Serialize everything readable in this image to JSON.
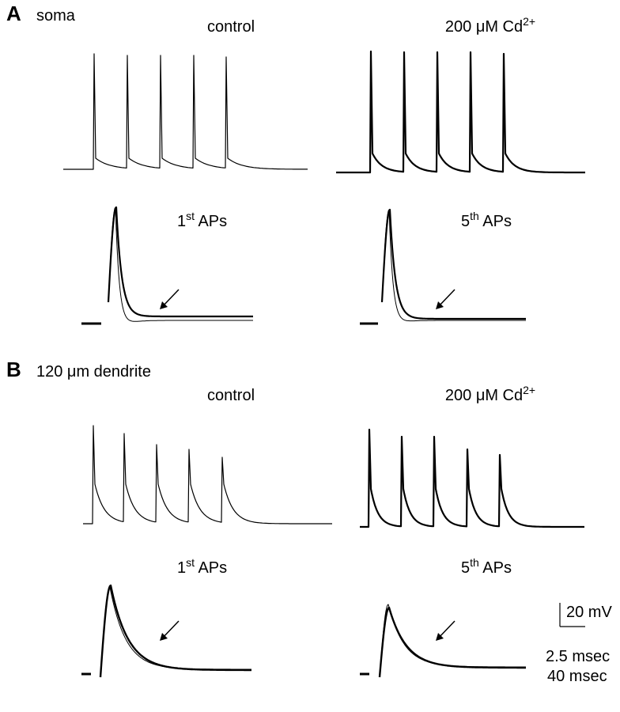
{
  "panels": [
    {
      "label": "A",
      "title": "soma",
      "conditions": [
        {
          "text": "control"
        },
        {
          "text": "200 μM Cd",
          "sup": "2+"
        }
      ],
      "overlays": [
        {
          "text": "1",
          "sup": "st",
          "rest": " APs"
        },
        {
          "text": "5",
          "sup": "th",
          "rest": " APs"
        }
      ]
    },
    {
      "label": "B",
      "title": "120 μm dendrite",
      "conditions": [
        {
          "text": "control"
        },
        {
          "text": "200 μM Cd",
          "sup": "2+"
        }
      ],
      "overlays": [
        {
          "text": "1",
          "sup": "st",
          "rest": " APs"
        },
        {
          "text": "5",
          "sup": "th",
          "rest": " APs"
        }
      ]
    }
  ],
  "scale_bar": {
    "voltage": "20 mV",
    "time_fast": "2.5 msec",
    "time_slow": "40 msec"
  }
}
